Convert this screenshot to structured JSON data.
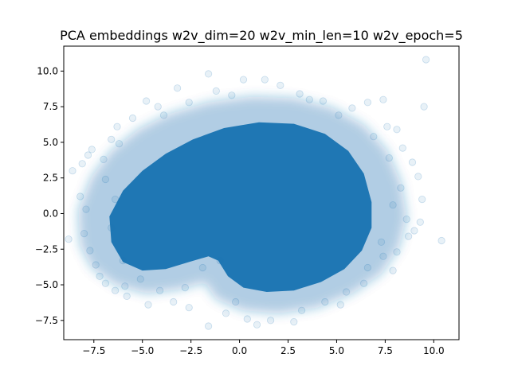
{
  "chart_data": {
    "type": "scatter",
    "title": "PCA embeddings w2v_dim=20 w2v_min_len=10 w2v_epoch=5",
    "xlabel": "",
    "ylabel": "",
    "xlim": [
      -9.05,
      11.3
    ],
    "ylim": [
      -8.85,
      11.75
    ],
    "xticks": [
      -7.5,
      -5.0,
      -2.5,
      0.0,
      2.5,
      5.0,
      7.5,
      10.0
    ],
    "xtick_labels": [
      "−7.5",
      "−5.0",
      "−2.5",
      "0.0",
      "2.5",
      "5.0",
      "7.5",
      "10.0"
    ],
    "yticks": [
      -7.5,
      -5.0,
      -2.5,
      0.0,
      2.5,
      5.0,
      7.5,
      10.0
    ],
    "ytick_labels": [
      "−7.5",
      "−5.0",
      "−2.5",
      "0.0",
      "2.5",
      "5.0",
      "7.5",
      "10.0"
    ],
    "grid": false,
    "legend": false,
    "marker_color": "#1f77b4",
    "marker_alpha": 0.06,
    "description_of_distribution": "dense cloud of many semi-transparent points",
    "points": [
      [
        -8.8,
        -1.8
      ],
      [
        -8.6,
        3.0
      ],
      [
        -8.1,
        3.5
      ],
      [
        -7.8,
        4.1
      ],
      [
        -7.6,
        4.5
      ],
      [
        -8.2,
        1.2
      ],
      [
        -7.9,
        0.3
      ],
      [
        -8.0,
        -1.4
      ],
      [
        -7.7,
        -2.6
      ],
      [
        -7.4,
        -3.6
      ],
      [
        -7.2,
        -4.4
      ],
      [
        -6.9,
        -4.9
      ],
      [
        -6.6,
        5.2
      ],
      [
        -6.3,
        6.1
      ],
      [
        -5.5,
        6.7
      ],
      [
        -4.8,
        7.9
      ],
      [
        -4.2,
        7.5
      ],
      [
        -3.2,
        8.8
      ],
      [
        -1.6,
        9.8
      ],
      [
        -1.2,
        8.6
      ],
      [
        0.2,
        9.4
      ],
      [
        1.3,
        9.4
      ],
      [
        2.1,
        9.0
      ],
      [
        3.1,
        8.4
      ],
      [
        4.3,
        7.9
      ],
      [
        5.8,
        7.4
      ],
      [
        6.6,
        7.8
      ],
      [
        7.4,
        8.0
      ],
      [
        7.6,
        6.1
      ],
      [
        8.1,
        5.9
      ],
      [
        8.4,
        4.6
      ],
      [
        8.9,
        3.6
      ],
      [
        9.2,
        2.6
      ],
      [
        9.4,
        1.0
      ],
      [
        9.3,
        -0.6
      ],
      [
        9.0,
        -1.2
      ],
      [
        8.7,
        -1.6
      ],
      [
        10.4,
        -1.9
      ],
      [
        9.5,
        7.5
      ],
      [
        9.6,
        10.8
      ],
      [
        8.1,
        -2.7
      ],
      [
        7.9,
        -4.0
      ],
      [
        7.4,
        -3.0
      ],
      [
        6.4,
        -4.9
      ],
      [
        5.2,
        -6.4
      ],
      [
        4.4,
        -6.2
      ],
      [
        2.8,
        -7.6
      ],
      [
        1.6,
        -7.5
      ],
      [
        0.9,
        -7.8
      ],
      [
        0.4,
        -7.4
      ],
      [
        -0.7,
        -7.0
      ],
      [
        -1.6,
        -7.9
      ],
      [
        -2.6,
        -6.6
      ],
      [
        -3.4,
        -6.2
      ],
      [
        -4.7,
        -6.4
      ],
      [
        -5.8,
        -5.8
      ],
      [
        -6.4,
        -5.4
      ],
      [
        -5.9,
        -5.1
      ],
      [
        -4.1,
        -5.4
      ],
      [
        -2.8,
        -5.2
      ],
      [
        -1.9,
        -3.8
      ],
      [
        -1.0,
        -3.3
      ],
      [
        -6.9,
        2.4
      ],
      [
        -7.0,
        3.8
      ],
      [
        -6.2,
        4.9
      ],
      [
        -3.9,
        6.9
      ],
      [
        -2.6,
        7.8
      ],
      [
        -0.4,
        8.3
      ],
      [
        3.6,
        8.0
      ],
      [
        5.1,
        6.9
      ],
      [
        6.9,
        5.4
      ],
      [
        7.7,
        3.9
      ],
      [
        8.3,
        1.8
      ],
      [
        8.6,
        -0.4
      ],
      [
        7.9,
        0.6
      ],
      [
        7.3,
        -2.0
      ],
      [
        6.6,
        -3.8
      ],
      [
        5.5,
        -5.5
      ],
      [
        3.2,
        -6.8
      ],
      [
        -0.2,
        -6.2
      ],
      [
        -5.1,
        -4.6
      ],
      [
        -6.0,
        -3.3
      ],
      [
        -6.6,
        -1.0
      ],
      [
        -6.4,
        1.0
      ]
    ],
    "core_outline": [
      [
        -6.6,
        -2.0
      ],
      [
        -6.7,
        -0.2
      ],
      [
        -6.0,
        1.6
      ],
      [
        -5.0,
        3.0
      ],
      [
        -3.8,
        4.2
      ],
      [
        -2.4,
        5.2
      ],
      [
        -0.8,
        6.0
      ],
      [
        1.0,
        6.4
      ],
      [
        2.8,
        6.3
      ],
      [
        4.4,
        5.6
      ],
      [
        5.6,
        4.4
      ],
      [
        6.4,
        2.8
      ],
      [
        6.8,
        0.8
      ],
      [
        6.8,
        -1.0
      ],
      [
        6.3,
        -2.6
      ],
      [
        5.4,
        -3.9
      ],
      [
        4.2,
        -4.8
      ],
      [
        2.8,
        -5.4
      ],
      [
        1.4,
        -5.5
      ],
      [
        0.2,
        -5.2
      ],
      [
        -0.6,
        -4.4
      ],
      [
        -1.1,
        -3.3
      ],
      [
        -1.6,
        -3.0
      ],
      [
        -2.6,
        -3.4
      ],
      [
        -3.8,
        -3.9
      ],
      [
        -5.0,
        -4.0
      ],
      [
        -6.0,
        -3.4
      ]
    ],
    "halo_outline": [
      [
        -8.2,
        -2.2
      ],
      [
        -8.3,
        0.2
      ],
      [
        -7.6,
        2.6
      ],
      [
        -6.6,
        4.4
      ],
      [
        -5.2,
        5.9
      ],
      [
        -3.6,
        7.0
      ],
      [
        -1.6,
        7.8
      ],
      [
        0.6,
        8.2
      ],
      [
        2.8,
        8.1
      ],
      [
        4.8,
        7.4
      ],
      [
        6.4,
        6.2
      ],
      [
        7.6,
        4.4
      ],
      [
        8.3,
        2.2
      ],
      [
        8.6,
        -0.2
      ],
      [
        8.2,
        -2.4
      ],
      [
        7.3,
        -4.2
      ],
      [
        5.8,
        -5.6
      ],
      [
        4.0,
        -6.6
      ],
      [
        2.0,
        -7.0
      ],
      [
        0.2,
        -6.8
      ],
      [
        -1.2,
        -6.0
      ],
      [
        -1.8,
        -4.8
      ],
      [
        -3.0,
        -5.3
      ],
      [
        -4.8,
        -5.6
      ],
      [
        -6.4,
        -5.0
      ],
      [
        -7.6,
        -3.8
      ]
    ]
  }
}
